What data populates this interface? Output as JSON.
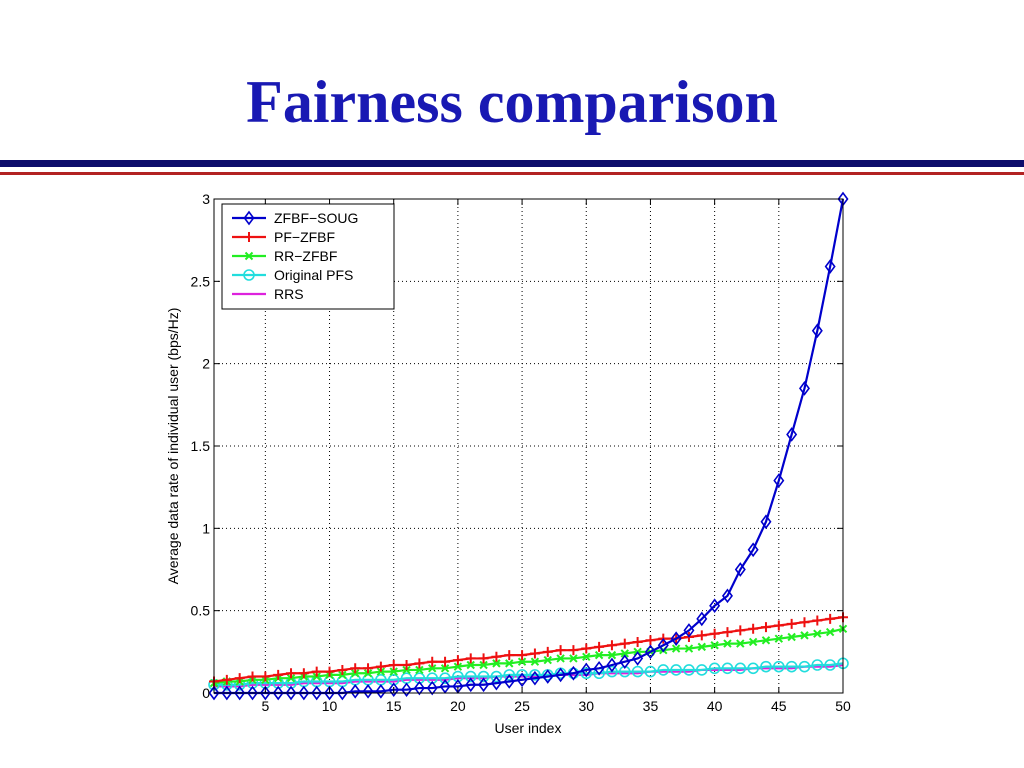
{
  "slide": {
    "title": "Fairness comparison"
  },
  "colors": {
    "title": "#1919b3",
    "rule_navy": "#0c0c6b",
    "rule_red": "#b22222"
  },
  "chart_data": {
    "type": "line",
    "xlabel": "User index",
    "ylabel": "Average data rate of individual user (bps/Hz)",
    "xlim": [
      1,
      50
    ],
    "ylim": [
      0,
      3
    ],
    "xticks": [
      5,
      10,
      15,
      20,
      25,
      30,
      35,
      40,
      45,
      50
    ],
    "yticks": [
      0,
      0.5,
      1,
      1.5,
      2,
      2.5,
      3
    ],
    "grid": true,
    "legend_position": "top-left",
    "x": [
      1,
      2,
      3,
      4,
      5,
      6,
      7,
      8,
      9,
      10,
      11,
      12,
      13,
      14,
      15,
      16,
      17,
      18,
      19,
      20,
      21,
      22,
      23,
      24,
      25,
      26,
      27,
      28,
      29,
      30,
      31,
      32,
      33,
      34,
      35,
      36,
      37,
      38,
      39,
      40,
      41,
      42,
      43,
      44,
      45,
      46,
      47,
      48,
      49,
      50
    ],
    "series": [
      {
        "name": "ZFBF−SOUG",
        "color": "#0000cc",
        "marker": "diamond",
        "values": [
          0.0,
          0.0,
          0.0,
          0.0,
          0.0,
          0.0,
          0.0,
          0.0,
          0.0,
          0.0,
          0.0,
          0.01,
          0.01,
          0.01,
          0.02,
          0.02,
          0.03,
          0.03,
          0.04,
          0.04,
          0.05,
          0.05,
          0.06,
          0.07,
          0.08,
          0.09,
          0.1,
          0.11,
          0.12,
          0.14,
          0.15,
          0.17,
          0.19,
          0.21,
          0.25,
          0.29,
          0.33,
          0.38,
          0.45,
          0.53,
          0.59,
          0.75,
          0.87,
          1.04,
          1.29,
          1.57,
          1.85,
          2.2,
          2.59,
          3.0
        ]
      },
      {
        "name": "PF−ZFBF",
        "color": "#ee1111",
        "marker": "plus",
        "values": [
          0.07,
          0.08,
          0.09,
          0.1,
          0.1,
          0.11,
          0.12,
          0.12,
          0.13,
          0.13,
          0.14,
          0.15,
          0.15,
          0.16,
          0.17,
          0.17,
          0.18,
          0.19,
          0.19,
          0.2,
          0.21,
          0.21,
          0.22,
          0.23,
          0.23,
          0.24,
          0.25,
          0.26,
          0.26,
          0.27,
          0.28,
          0.29,
          0.3,
          0.31,
          0.32,
          0.33,
          0.33,
          0.34,
          0.35,
          0.36,
          0.37,
          0.38,
          0.39,
          0.4,
          0.41,
          0.42,
          0.43,
          0.44,
          0.45,
          0.46
        ]
      },
      {
        "name": "RR−ZFBF",
        "color": "#22ee22",
        "marker": "x",
        "values": [
          0.06,
          0.07,
          0.07,
          0.08,
          0.08,
          0.09,
          0.09,
          0.1,
          0.1,
          0.11,
          0.11,
          0.12,
          0.12,
          0.13,
          0.13,
          0.14,
          0.14,
          0.15,
          0.15,
          0.16,
          0.17,
          0.17,
          0.18,
          0.18,
          0.19,
          0.19,
          0.2,
          0.21,
          0.21,
          0.22,
          0.23,
          0.23,
          0.24,
          0.25,
          0.25,
          0.26,
          0.27,
          0.27,
          0.28,
          0.29,
          0.3,
          0.3,
          0.31,
          0.32,
          0.33,
          0.34,
          0.35,
          0.36,
          0.37,
          0.39
        ]
      },
      {
        "name": "Original PFS",
        "color": "#22dddd",
        "marker": "circle",
        "values": [
          0.05,
          0.05,
          0.05,
          0.06,
          0.06,
          0.06,
          0.06,
          0.07,
          0.07,
          0.07,
          0.07,
          0.08,
          0.08,
          0.08,
          0.08,
          0.09,
          0.09,
          0.09,
          0.09,
          0.1,
          0.1,
          0.1,
          0.1,
          0.11,
          0.11,
          0.11,
          0.11,
          0.12,
          0.12,
          0.12,
          0.12,
          0.13,
          0.13,
          0.13,
          0.13,
          0.14,
          0.14,
          0.14,
          0.14,
          0.15,
          0.15,
          0.15,
          0.15,
          0.16,
          0.16,
          0.16,
          0.16,
          0.17,
          0.17,
          0.18
        ]
      },
      {
        "name": "RRS",
        "color": "#dd22dd",
        "marker": "none",
        "values": [
          0.04,
          0.04,
          0.04,
          0.05,
          0.05,
          0.05,
          0.05,
          0.06,
          0.06,
          0.06,
          0.06,
          0.07,
          0.07,
          0.07,
          0.07,
          0.08,
          0.08,
          0.08,
          0.08,
          0.09,
          0.09,
          0.09,
          0.1,
          0.1,
          0.1,
          0.1,
          0.11,
          0.11,
          0.11,
          0.11,
          0.12,
          0.12,
          0.12,
          0.12,
          0.13,
          0.13,
          0.13,
          0.13,
          0.14,
          0.14,
          0.14,
          0.14,
          0.15,
          0.15,
          0.15,
          0.15,
          0.16,
          0.16,
          0.16,
          0.17
        ]
      }
    ]
  }
}
